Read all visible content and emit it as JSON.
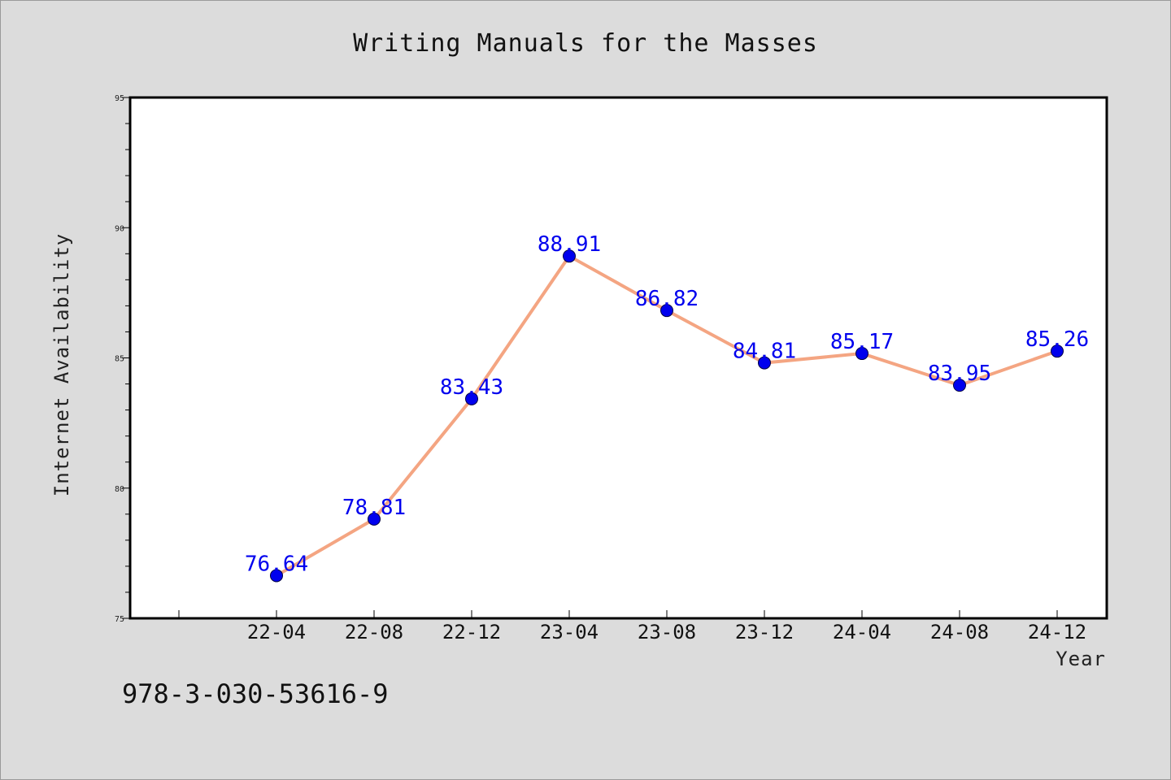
{
  "chart_data": {
    "type": "line",
    "title": "Writing Manuals for the Masses",
    "xlabel": "Year",
    "ylabel": "Internet Availability",
    "categories": [
      "22-04",
      "22-08",
      "22-12",
      "23-04",
      "23-08",
      "23-12",
      "24-04",
      "24-08",
      "24-12"
    ],
    "values": [
      76.64,
      78.81,
      83.43,
      88.91,
      86.82,
      84.81,
      85.17,
      83.95,
      85.26
    ],
    "data_labels": [
      "76.64",
      "78.81",
      "83.43",
      "88.91",
      "86.82",
      "84.81",
      "85.17",
      "83.95",
      "85.26"
    ],
    "ylim": [
      75,
      95
    ],
    "yticks": [
      75,
      80,
      85,
      90,
      95
    ],
    "grid": false,
    "legend": "none",
    "colors": {
      "line": "#f4a582",
      "marker": "#0000ee",
      "labels": "#0000ee",
      "plot_bg": "#ffffff",
      "page_bg": "#dcdcdc"
    }
  },
  "footer": {
    "code": "978-3-030-53616-9"
  }
}
